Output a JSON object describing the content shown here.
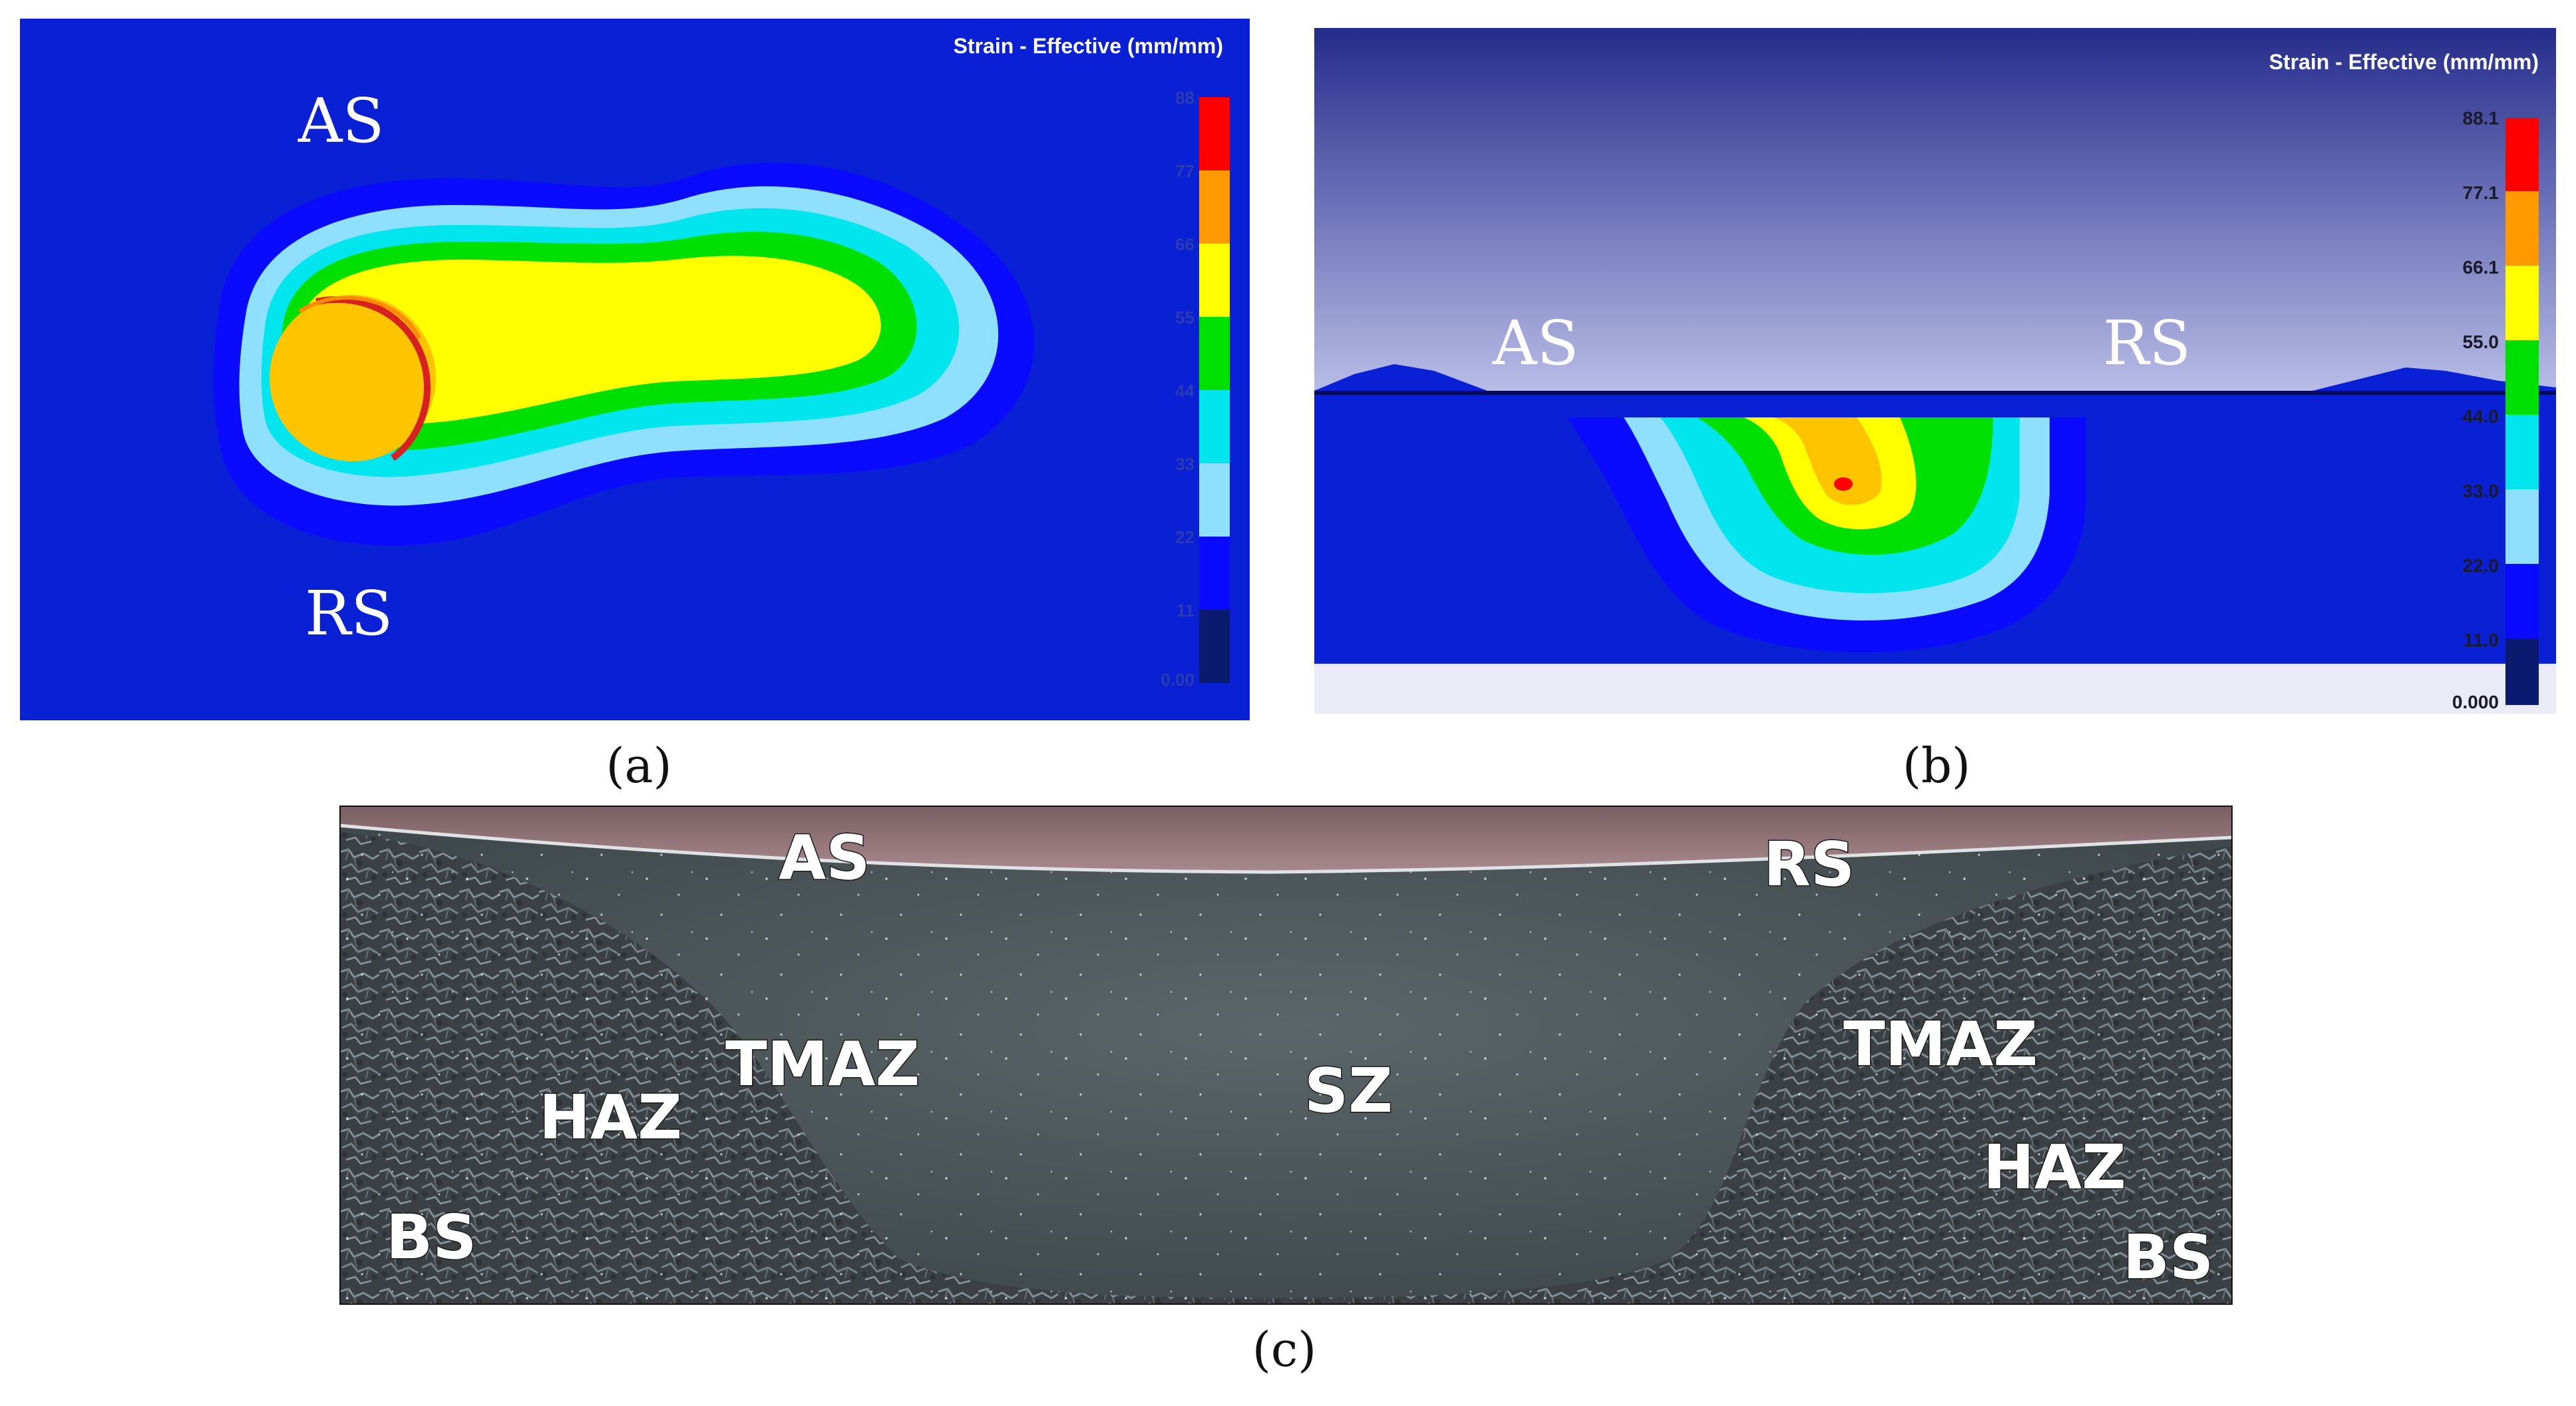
{
  "panel_a": {
    "title": "Strain - Effective (mm/mm)",
    "label_top": "AS",
    "label_bottom": "RS",
    "scale_ticks": [
      "88",
      "77",
      "66",
      "55",
      "44",
      "33",
      "22",
      "11",
      "0.00"
    ],
    "caption": "(a)"
  },
  "panel_b": {
    "title": "Strain - Effective (mm/mm)",
    "label_left": "AS",
    "label_right": "RS",
    "scale_ticks": [
      "88.1",
      "77.1",
      "66.1",
      "55.0",
      "44.0",
      "33.0",
      "22.0",
      "11.0",
      "0.000"
    ],
    "caption": "(b)"
  },
  "panel_c": {
    "labels": {
      "as": "AS",
      "rs": "RS",
      "tmaz_left": "TMAZ",
      "tmaz_right": "TMAZ",
      "sz": "SZ",
      "haz_left": "HAZ",
      "haz_right": "HAZ",
      "bs_left": "BS",
      "bs_right": "BS"
    },
    "caption": "(c)"
  },
  "colors": {
    "band_0": "#0a1a6e",
    "band_1": "#0a0aff",
    "band_2": "#8fe0ff",
    "band_3": "#00e5ee",
    "band_4": "#00e000",
    "band_5": "#ffff00",
    "band_6": "#ff9900",
    "band_7": "#ff0000",
    "background_blue": "#0a20d4"
  }
}
